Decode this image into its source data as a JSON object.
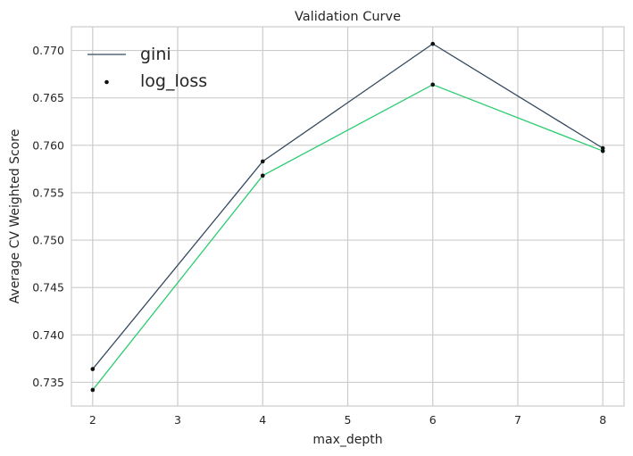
{
  "chart_data": {
    "type": "line",
    "title": "Validation Curve",
    "xlabel": "max_depth",
    "ylabel": "Average CV Weighted Score",
    "x": [
      2,
      4,
      6,
      8
    ],
    "xlim": [
      1.75,
      8.25
    ],
    "ylim": [
      0.7325,
      0.7725
    ],
    "xticks": [
      2,
      3,
      4,
      5,
      6,
      7,
      8
    ],
    "yticks": [
      0.735,
      0.74,
      0.745,
      0.75,
      0.755,
      0.76,
      0.765,
      0.77
    ],
    "grid": true,
    "legend_position": "top-left",
    "series": [
      {
        "name": "gini",
        "values": [
          0.7364,
          0.7583,
          0.7707,
          0.7597
        ],
        "color": "#34495e"
      },
      {
        "name": "log_loss",
        "values": [
          0.7342,
          0.7568,
          0.7664,
          0.7594
        ],
        "color": "#2ecc71"
      }
    ],
    "marker_color": "#111111"
  }
}
